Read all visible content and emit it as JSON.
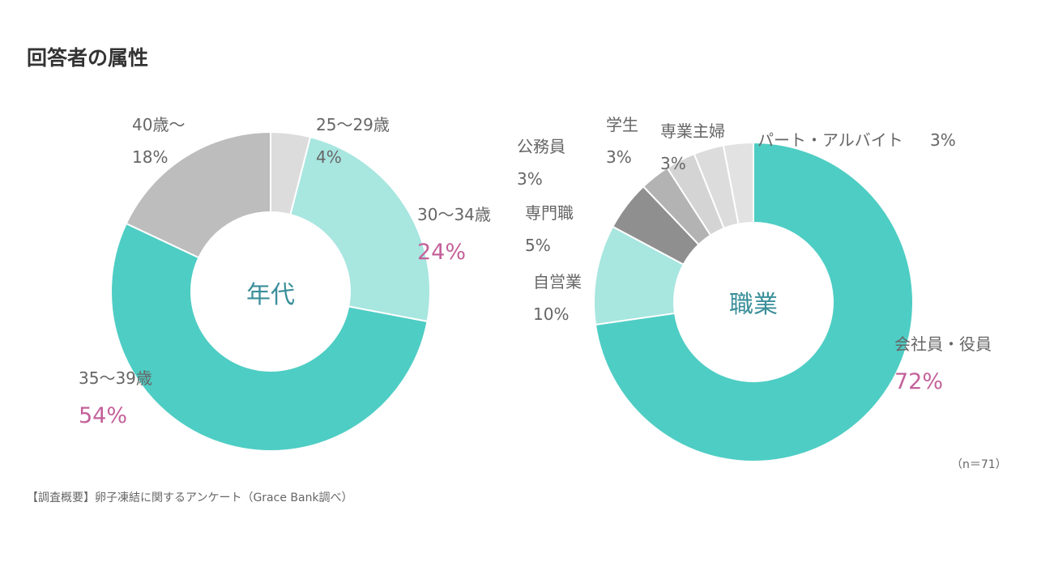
{
  "page": {
    "title": "回答者の属性"
  },
  "chart_data": [
    {
      "type": "pie",
      "center_label": "年代",
      "categories": [
        "25〜29歳",
        "30〜34歳",
        "35〜39歳",
        "40歳〜"
      ],
      "values": [
        4,
        24,
        54,
        18
      ],
      "value_labels": [
        "4%",
        "24%",
        "54%",
        "18%"
      ],
      "colors": [
        "#dcdcdc",
        "#a8e6e0",
        "#4ecdc4",
        "#bdbdbd"
      ],
      "highlighted": [
        "30〜34歳",
        "35〜39歳"
      ]
    },
    {
      "type": "pie",
      "center_label": "職業",
      "categories": [
        "会社員・役員",
        "自営業",
        "専門職",
        "公務員",
        "学生",
        "専業主婦",
        "パート・アルバイト"
      ],
      "values": [
        72,
        10,
        5,
        3,
        3,
        3,
        3
      ],
      "value_labels": [
        "72%",
        "10%",
        "5%",
        "3%",
        "3%",
        "3%",
        "3%"
      ],
      "colors": [
        "#4ecdc4",
        "#a8e6e0",
        "#8f8f8f",
        "#b3b3b3",
        "#d4d4d4",
        "#dcdcdc",
        "#e2e2e2"
      ],
      "highlighted": [
        "会社員・役員"
      ]
    }
  ],
  "footer": {
    "survey_note": "【調査概要】卵子凍結に関するアンケート（Grace Bank調べ）",
    "sample_size": "（n＝71）"
  }
}
